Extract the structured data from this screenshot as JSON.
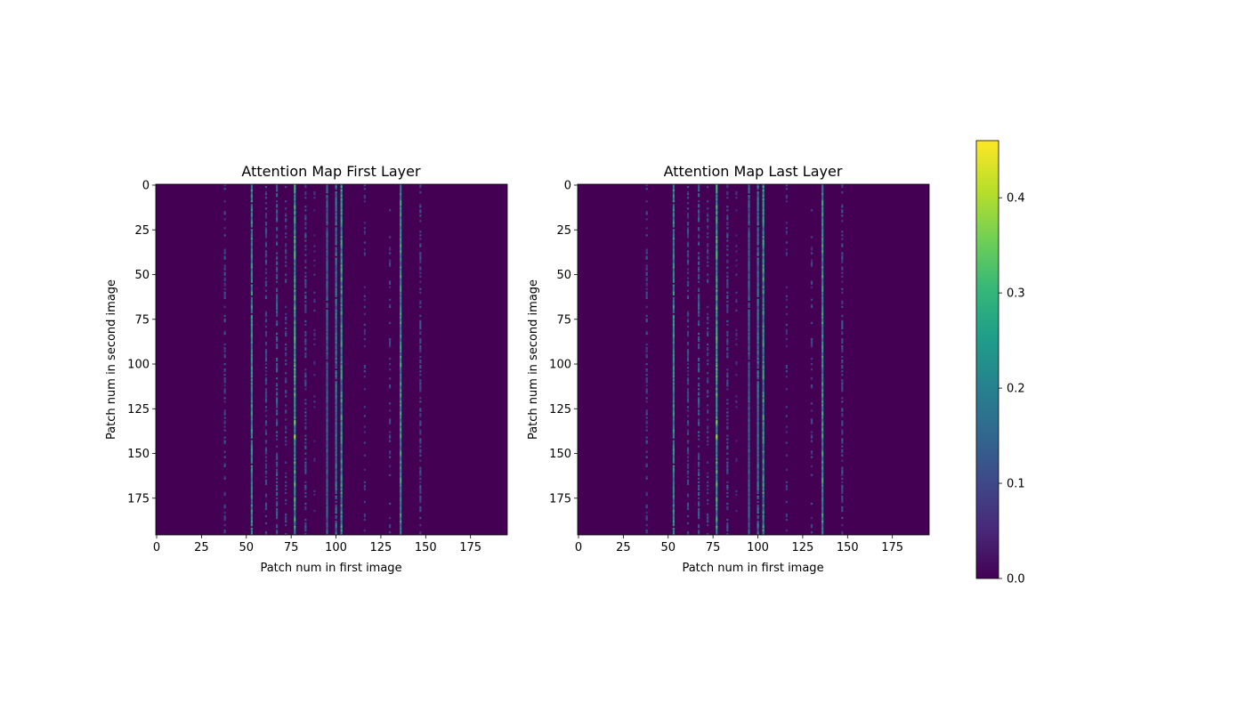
{
  "chart_data": [
    {
      "type": "heatmap",
      "title": "Attention Map First Layer",
      "xlabel": "Patch num in first image",
      "ylabel": "Patch num in second image",
      "xlim": [
        0,
        196
      ],
      "ylim": [
        196,
        0
      ],
      "xticks": [
        0,
        25,
        50,
        75,
        100,
        125,
        150,
        175
      ],
      "yticks": [
        0,
        25,
        50,
        75,
        100,
        125,
        150,
        175
      ],
      "colormap": "viridis",
      "columns": [
        {
          "x": 38,
          "value": 0.1,
          "density": 0.45
        },
        {
          "x": 53,
          "value": 0.22,
          "density": 0.95
        },
        {
          "x": 61,
          "value": 0.1,
          "density": 0.55
        },
        {
          "x": 67,
          "value": 0.13,
          "density": 0.6
        },
        {
          "x": 72,
          "value": 0.09,
          "density": 0.35
        },
        {
          "x": 77,
          "value": 0.26,
          "density": 1.0
        },
        {
          "x": 83,
          "value": 0.11,
          "density": 0.55
        },
        {
          "x": 88,
          "value": 0.07,
          "density": 0.15
        },
        {
          "x": 95,
          "value": 0.14,
          "density": 0.95
        },
        {
          "x": 100,
          "value": 0.18,
          "density": 0.95
        },
        {
          "x": 103,
          "value": 0.24,
          "density": 1.0
        },
        {
          "x": 116,
          "value": 0.09,
          "density": 0.2
        },
        {
          "x": 130,
          "value": 0.09,
          "density": 0.2
        },
        {
          "x": 136,
          "value": 0.24,
          "density": 1.0
        },
        {
          "x": 147,
          "value": 0.1,
          "density": 0.45
        }
      ],
      "hotspots": [
        {
          "x": 77,
          "y": 132,
          "value": 0.35
        },
        {
          "x": 77,
          "y": 140,
          "value": 0.38
        },
        {
          "x": 77,
          "y": 38,
          "value": 0.3
        },
        {
          "x": 136,
          "y": 100,
          "value": 0.3
        }
      ]
    },
    {
      "type": "heatmap",
      "title": "Attention Map Last Layer",
      "xlabel": "Patch num in first image",
      "ylabel": "Patch num in second image",
      "xlim": [
        0,
        196
      ],
      "ylim": [
        196,
        0
      ],
      "xticks": [
        0,
        25,
        50,
        75,
        100,
        125,
        150,
        175
      ],
      "yticks": [
        0,
        25,
        50,
        75,
        100,
        125,
        150,
        175
      ],
      "colormap": "viridis",
      "columns": [
        {
          "x": 38,
          "value": 0.1,
          "density": 0.45
        },
        {
          "x": 53,
          "value": 0.22,
          "density": 0.95
        },
        {
          "x": 61,
          "value": 0.1,
          "density": 0.55
        },
        {
          "x": 67,
          "value": 0.13,
          "density": 0.6
        },
        {
          "x": 72,
          "value": 0.09,
          "density": 0.35
        },
        {
          "x": 77,
          "value": 0.26,
          "density": 1.0
        },
        {
          "x": 83,
          "value": 0.11,
          "density": 0.55
        },
        {
          "x": 88,
          "value": 0.07,
          "density": 0.15
        },
        {
          "x": 95,
          "value": 0.14,
          "density": 0.95
        },
        {
          "x": 100,
          "value": 0.18,
          "density": 0.95
        },
        {
          "x": 103,
          "value": 0.24,
          "density": 1.0
        },
        {
          "x": 116,
          "value": 0.09,
          "density": 0.2
        },
        {
          "x": 130,
          "value": 0.09,
          "density": 0.2
        },
        {
          "x": 136,
          "value": 0.24,
          "density": 1.0
        },
        {
          "x": 147,
          "value": 0.1,
          "density": 0.45
        }
      ],
      "hotspots": [
        {
          "x": 77,
          "y": 132,
          "value": 0.35
        },
        {
          "x": 77,
          "y": 140,
          "value": 0.38
        },
        {
          "x": 77,
          "y": 38,
          "value": 0.3
        }
      ]
    }
  ],
  "colorbar": {
    "min": 0.0,
    "max": 0.46,
    "ticks": [
      0.0,
      0.1,
      0.2,
      0.3,
      0.4
    ],
    "tick_labels": [
      "0.0",
      "0.1",
      "0.2",
      "0.3",
      "0.4"
    ]
  },
  "colors": {
    "background_min": "#440154",
    "mid": "#21918c",
    "max": "#fde725"
  }
}
